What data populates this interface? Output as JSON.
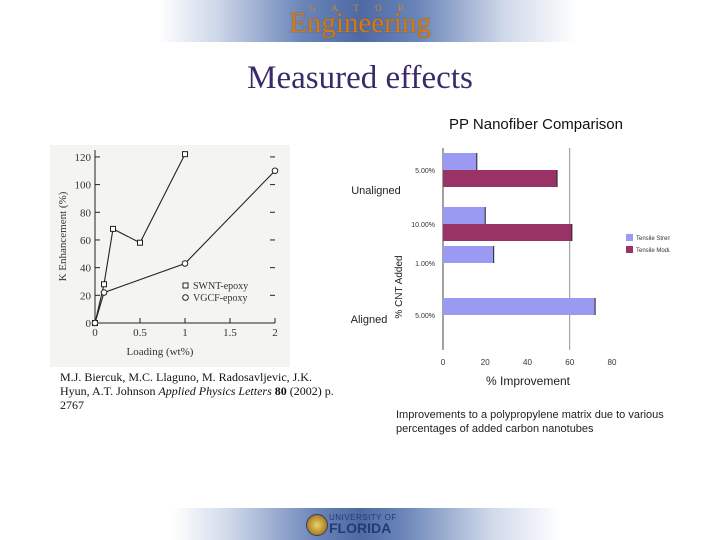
{
  "header": {
    "logo_small": "G A T O R",
    "logo_main": "Engineering"
  },
  "slide": {
    "title": "Measured effects",
    "citation": {
      "authors": "M.J. Biercuk, M.C. Llaguno, M. Radosavljevic, J.K. Hyun, A.T. Johnson ",
      "journal": "Applied Physics Letters",
      "volume": "80",
      "rest": " (2002) p. 2767"
    },
    "caption": "Improvements to a polypropylene matrix due to various percentages of added carbon nanotubes"
  },
  "footer": {
    "university_top": "UNIVERSITY OF",
    "university_main": "FLORIDA"
  },
  "chart_data": [
    {
      "type": "line",
      "title": "",
      "xlabel": "Loading (wt%)",
      "ylabel": "K Enhancement (%)",
      "xlim": [
        0,
        2
      ],
      "ylim": [
        0,
        125
      ],
      "xticks": [
        "0",
        "0.5",
        "1",
        "1.5",
        "2"
      ],
      "yticks": [
        "0",
        "20",
        "40",
        "60",
        "80",
        "100",
        "120"
      ],
      "legend_position": "bottom-right",
      "grid": false,
      "series": [
        {
          "name": "SWNT-epoxy",
          "marker": "square",
          "x": [
            0,
            0.1,
            0.2,
            0.5,
            1.0
          ],
          "y": [
            0,
            28,
            68,
            58,
            122
          ]
        },
        {
          "name": "VGCF-epoxy",
          "marker": "circle",
          "x": [
            0,
            0.1,
            1.0,
            2.0
          ],
          "y": [
            0,
            22,
            43,
            110
          ]
        }
      ]
    },
    {
      "type": "bar",
      "orientation": "horizontal",
      "title": "PP Nanofiber Comparison",
      "xlabel": "% Improvement",
      "ylabel": "% CNT Added",
      "xlim": [
        0,
        80
      ],
      "xticks": [
        "0",
        "20",
        "40",
        "60",
        "80"
      ],
      "group_labels": [
        "Unaligned",
        "Aligned"
      ],
      "categories": [
        "5.00%",
        "10.00%",
        "1.00%",
        "5.00%"
      ],
      "series": [
        {
          "name": "Tensile Strength",
          "color": "#9a9af2",
          "values": [
            16,
            20,
            24,
            72
          ]
        },
        {
          "name": "Tensile Modulus",
          "color": "#993366",
          "values": [
            54,
            61,
            null,
            null
          ]
        }
      ],
      "legend_position": "right",
      "grid": false
    }
  ]
}
